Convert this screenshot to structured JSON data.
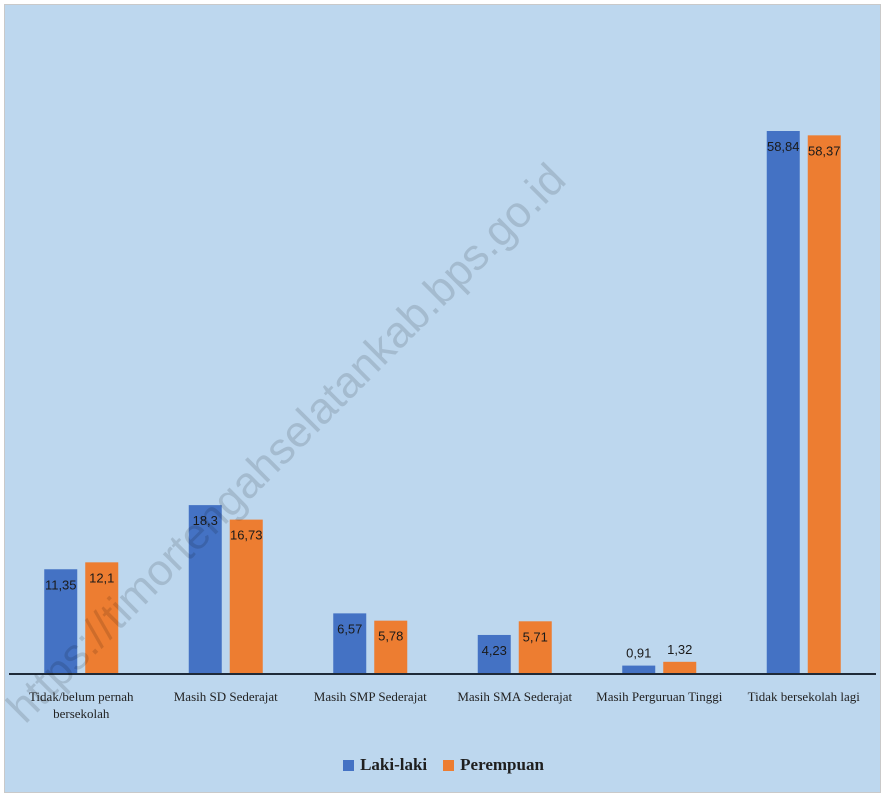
{
  "chart_data": {
    "type": "bar",
    "categories": [
      [
        "Tidak/belum pernah",
        "bersekolah"
      ],
      [
        "Masih SD Sederajat"
      ],
      [
        "Masih SMP Sederajat"
      ],
      [
        "Masih SMA Sederajat"
      ],
      [
        "Masih Perguruan Tinggi"
      ],
      [
        "Tidak bersekolah lagi"
      ]
    ],
    "series": [
      {
        "name": "Laki-laki",
        "color": "#4472c4",
        "values": [
          11.35,
          18.3,
          6.57,
          4.23,
          0.91,
          58.84
        ],
        "labels": [
          "11,35",
          "18,3",
          "6,57",
          "4,23",
          "0,91",
          "58,84"
        ]
      },
      {
        "name": "Perempuan",
        "color": "#ed7d31",
        "values": [
          12.1,
          16.73,
          5.78,
          5.71,
          1.32,
          58.37
        ],
        "labels": [
          "12,1",
          "16,73",
          "5,78",
          "5,71",
          "1,32",
          "58,37"
        ]
      }
    ],
    "ylim": [
      0,
      65
    ],
    "grid": false,
    "legend_position": "bottom",
    "title": "",
    "xlabel": "",
    "ylabel": ""
  },
  "watermark": "https://timortengahselatankab.bps.go.id"
}
